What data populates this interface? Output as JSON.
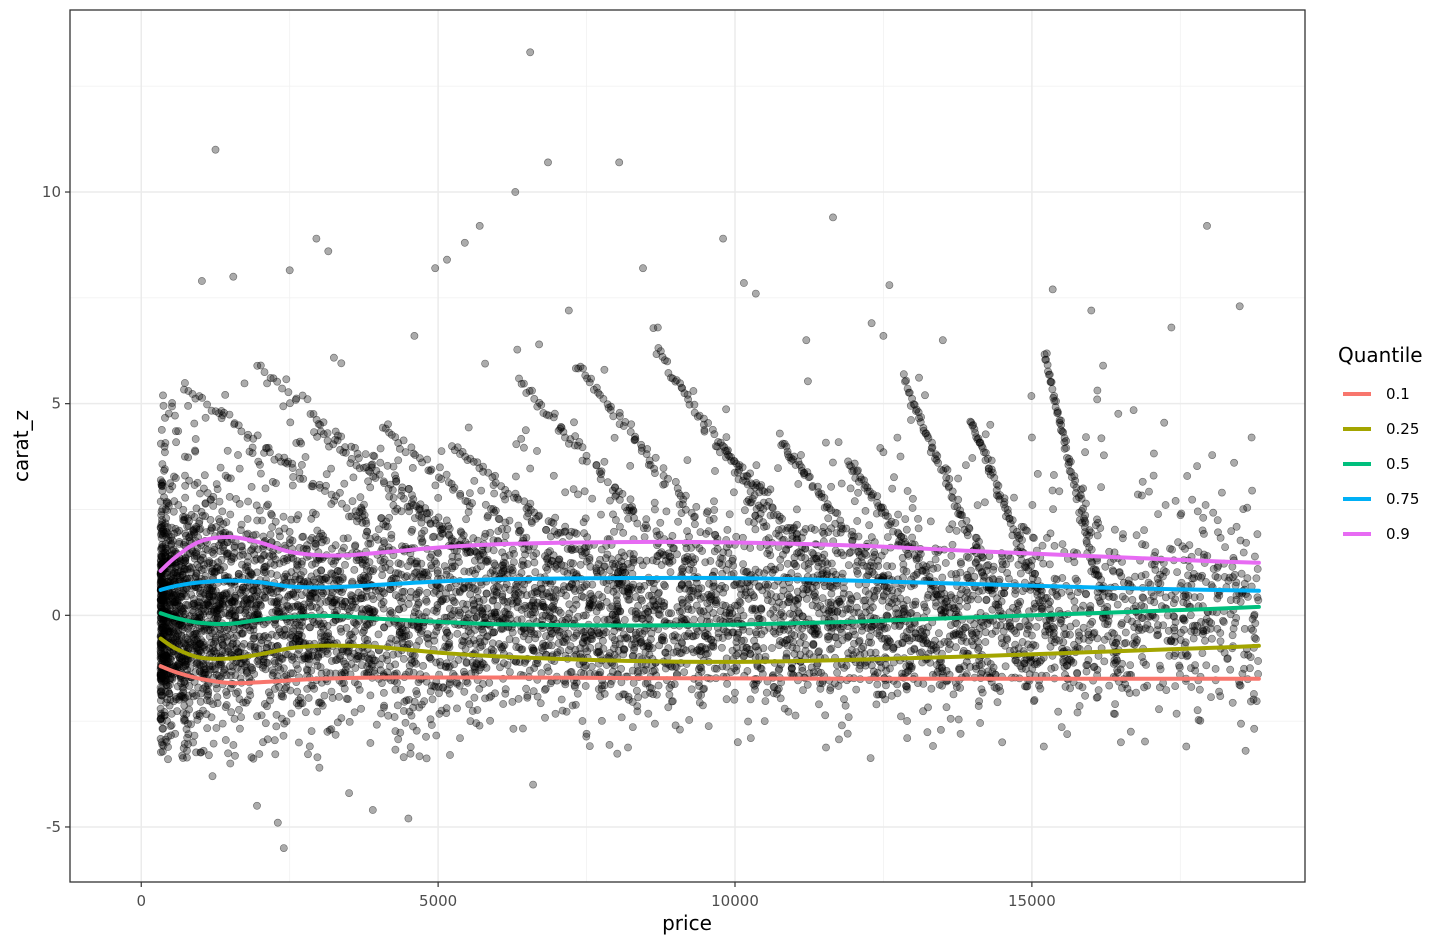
{
  "chart_data": {
    "type": "scatter",
    "xlabel": "price",
    "ylabel": "carat_z",
    "xlim": [
      -1200,
      19600
    ],
    "ylim": [
      -6.3,
      14.3
    ],
    "x_ticks": [
      0,
      5000,
      10000,
      15000
    ],
    "y_ticks": [
      -5,
      0,
      5,
      10
    ],
    "x_tick_labels": [
      "0",
      "5000",
      "10000",
      "15000"
    ],
    "y_tick_labels": [
      "-5",
      "0",
      "5",
      "10"
    ],
    "grid": true,
    "point_color": "#000000",
    "point_opacity": 0.33,
    "legend": {
      "title": "Quantile",
      "position": "right"
    },
    "series": [
      {
        "name": "0.1",
        "color": "#F8766D",
        "x": [
          326,
          600,
          1000,
          1500,
          2000,
          3000,
          4000,
          5000,
          6000,
          8000,
          10000,
          12000,
          14000,
          16000,
          18000,
          18823
        ],
        "y": [
          -1.2,
          -1.35,
          -1.5,
          -1.6,
          -1.58,
          -1.5,
          -1.47,
          -1.47,
          -1.47,
          -1.48,
          -1.49,
          -1.5,
          -1.5,
          -1.5,
          -1.5,
          -1.5
        ]
      },
      {
        "name": "0.25",
        "color": "#A3A500",
        "x": [
          326,
          600,
          1000,
          1500,
          2000,
          2500,
          3000,
          3500,
          4000,
          5000,
          6000,
          8000,
          10000,
          12000,
          14000,
          16000,
          18000,
          18823
        ],
        "y": [
          -0.55,
          -0.8,
          -1.0,
          -1.02,
          -0.92,
          -0.78,
          -0.72,
          -0.72,
          -0.75,
          -0.88,
          -0.97,
          -1.07,
          -1.1,
          -1.05,
          -0.97,
          -0.87,
          -0.77,
          -0.72
        ]
      },
      {
        "name": "0.5",
        "color": "#00BF7D",
        "x": [
          326,
          600,
          1000,
          1500,
          2000,
          2500,
          3000,
          3500,
          4000,
          5000,
          6000,
          8000,
          10000,
          12000,
          14000,
          16000,
          18000,
          18823
        ],
        "y": [
          0.05,
          -0.07,
          -0.18,
          -0.2,
          -0.1,
          -0.04,
          -0.01,
          -0.03,
          -0.08,
          -0.15,
          -0.21,
          -0.24,
          -0.22,
          -0.15,
          -0.05,
          0.05,
          0.15,
          0.2
        ]
      },
      {
        "name": "0.75",
        "color": "#00B0F6",
        "x": [
          326,
          600,
          1000,
          1500,
          2000,
          2500,
          3000,
          3500,
          4000,
          5000,
          6000,
          8000,
          10000,
          12000,
          14000,
          16000,
          18000,
          18823
        ],
        "y": [
          0.6,
          0.7,
          0.78,
          0.82,
          0.78,
          0.68,
          0.66,
          0.68,
          0.72,
          0.8,
          0.85,
          0.88,
          0.88,
          0.82,
          0.74,
          0.66,
          0.6,
          0.58
        ]
      },
      {
        "name": "0.9",
        "color": "#E76BF3",
        "x": [
          326,
          600,
          1000,
          1500,
          2000,
          2500,
          3000,
          3500,
          4000,
          5000,
          6000,
          8000,
          10000,
          12000,
          14000,
          16000,
          18000,
          18823
        ],
        "y": [
          1.05,
          1.4,
          1.75,
          1.85,
          1.72,
          1.5,
          1.42,
          1.42,
          1.48,
          1.6,
          1.68,
          1.73,
          1.72,
          1.65,
          1.52,
          1.4,
          1.28,
          1.24
        ]
      }
    ],
    "scatter_points": [
      [
        1250,
        11.0
      ],
      [
        6550,
        13.3
      ],
      [
        6850,
        10.7
      ],
      [
        8050,
        10.7
      ],
      [
        6300,
        10.0
      ],
      [
        11650,
        9.4
      ],
      [
        17950,
        9.2
      ],
      [
        9800,
        8.9
      ],
      [
        2950,
        8.9
      ],
      [
        3150,
        8.6
      ],
      [
        2500,
        8.15
      ],
      [
        4950,
        8.2
      ],
      [
        5150,
        8.4
      ],
      [
        5700,
        9.2
      ],
      [
        5450,
        8.8
      ],
      [
        8450,
        8.2
      ],
      [
        10150,
        7.85
      ],
      [
        10350,
        7.6
      ],
      [
        15350,
        7.7
      ],
      [
        16000,
        7.2
      ],
      [
        18500,
        7.3
      ],
      [
        12600,
        7.8
      ],
      [
        13500,
        6.5
      ],
      [
        17350,
        6.8
      ],
      [
        1550,
        8.0
      ],
      [
        4600,
        6.6
      ],
      [
        6700,
        6.4
      ],
      [
        7200,
        7.2
      ],
      [
        7800,
        5.8
      ],
      [
        8700,
        6.8
      ],
      [
        9300,
        5.3
      ],
      [
        11200,
        6.5
      ],
      [
        12300,
        6.9
      ],
      [
        12500,
        6.6
      ],
      [
        13200,
        5.2
      ],
      [
        14300,
        4.5
      ],
      [
        15000,
        4.2
      ],
      [
        16100,
        5.1
      ],
      [
        16200,
        5.9
      ],
      [
        17050,
        3.3
      ],
      [
        18200,
        2.9
      ],
      [
        18700,
        4.2
      ],
      [
        5200,
        -3.3
      ],
      [
        6600,
        -4.0
      ],
      [
        2400,
        -5.5
      ],
      [
        2300,
        -4.9
      ],
      [
        4500,
        -4.8
      ],
      [
        3900,
        -4.6
      ],
      [
        1950,
        -4.5
      ],
      [
        13800,
        -2.8
      ],
      [
        15200,
        -3.1
      ],
      [
        16500,
        -3.0
      ],
      [
        17600,
        -3.1
      ],
      [
        18600,
        -3.2
      ],
      [
        7500,
        -2.8
      ],
      [
        9000,
        -2.6
      ],
      [
        10500,
        -2.5
      ],
      [
        11800,
        -2.6
      ],
      [
        12900,
        -2.9
      ],
      [
        14500,
        -3.0
      ],
      [
        1050,
        -3.2
      ],
      [
        1500,
        -3.5
      ],
      [
        3000,
        -3.6
      ],
      [
        3500,
        -4.2
      ],
      [
        1200,
        -3.8
      ]
    ]
  }
}
